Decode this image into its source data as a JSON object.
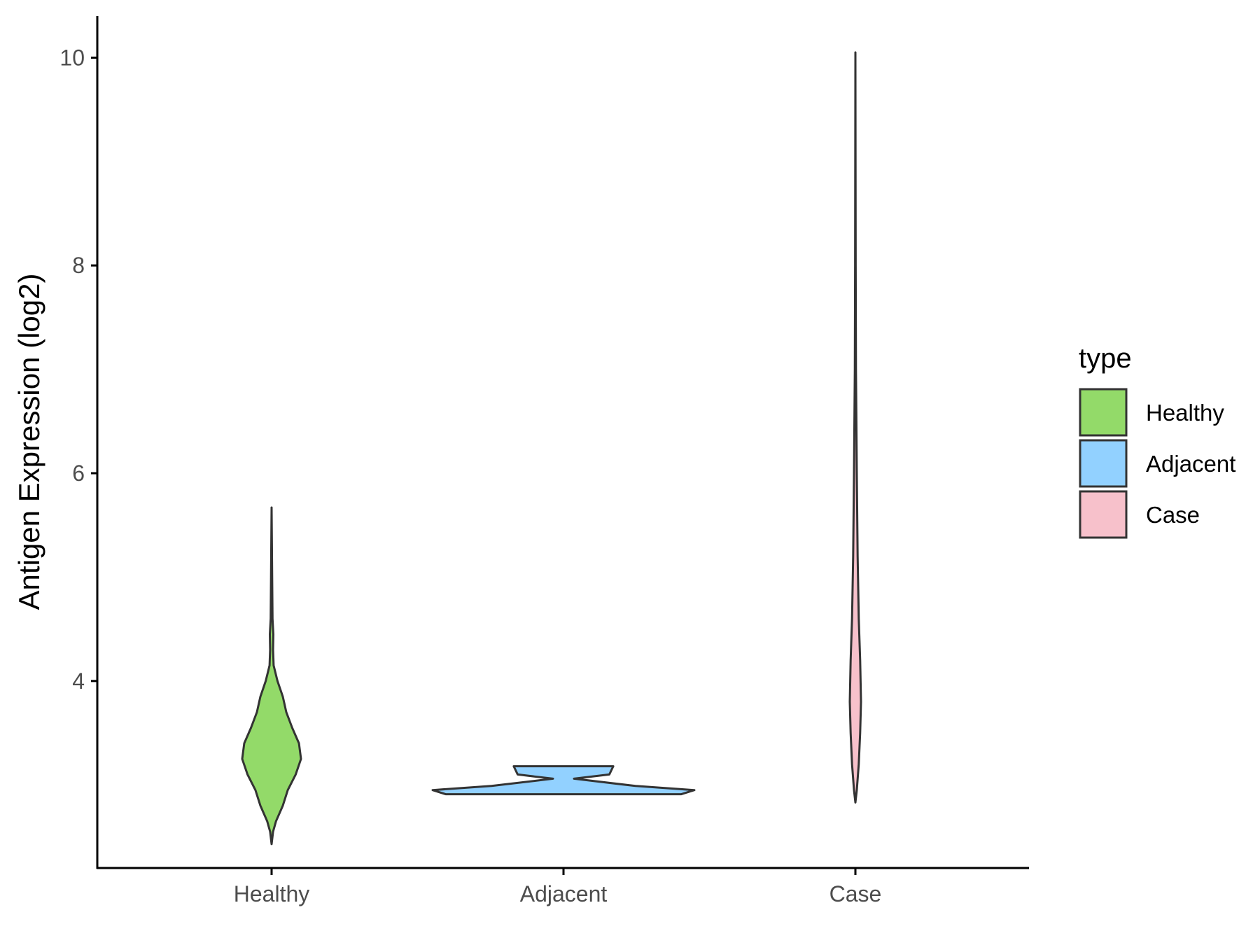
{
  "chart_data": {
    "type": "violin",
    "title": "",
    "xlabel": "",
    "ylabel": "Antigen Expression (log2)",
    "ylim": [
      2.2,
      10.4
    ],
    "yticks": [
      4,
      6,
      8,
      10
    ],
    "categories": [
      "Healthy",
      "Adjacent",
      "Case"
    ],
    "grid": false,
    "legend": {
      "title": "type",
      "position": "right",
      "entries": [
        {
          "label": "Healthy",
          "color": "#93DA69"
        },
        {
          "label": "Adjacent",
          "color": "#92D1FF"
        },
        {
          "label": "Case",
          "color": "#F7C1CB"
        }
      ]
    },
    "series": [
      {
        "category": "Healthy",
        "color": "#93DA69",
        "min": 2.43,
        "max": 5.67,
        "density": [
          [
            2.43,
            0.0
          ],
          [
            2.55,
            0.05
          ],
          [
            2.65,
            0.15
          ],
          [
            2.8,
            0.38
          ],
          [
            2.95,
            0.55
          ],
          [
            3.1,
            0.82
          ],
          [
            3.25,
            1.0
          ],
          [
            3.4,
            0.93
          ],
          [
            3.55,
            0.7
          ],
          [
            3.7,
            0.5
          ],
          [
            3.85,
            0.38
          ],
          [
            4.0,
            0.2
          ],
          [
            4.15,
            0.07
          ],
          [
            4.3,
            0.05
          ],
          [
            4.45,
            0.06
          ],
          [
            4.6,
            0.03
          ],
          [
            5.0,
            0.02
          ],
          [
            5.67,
            0.0
          ]
        ]
      },
      {
        "category": "Adjacent",
        "color": "#92D1FF",
        "min": 2.91,
        "max": 3.18,
        "density": [
          [
            2.91,
            0.9
          ],
          [
            2.95,
            1.0
          ],
          [
            2.99,
            0.55
          ],
          [
            3.06,
            0.08
          ],
          [
            3.1,
            0.35
          ],
          [
            3.18,
            0.38
          ]
        ]
      },
      {
        "category": "Case",
        "color": "#F7C1CB",
        "min": 2.83,
        "max": 10.05,
        "density": [
          [
            2.83,
            0.0
          ],
          [
            2.95,
            0.25
          ],
          [
            3.2,
            0.6
          ],
          [
            3.5,
            0.85
          ],
          [
            3.8,
            1.0
          ],
          [
            4.2,
            0.85
          ],
          [
            4.6,
            0.6
          ],
          [
            5.2,
            0.4
          ],
          [
            6.0,
            0.25
          ],
          [
            7.0,
            0.1
          ],
          [
            8.0,
            0.05
          ],
          [
            9.0,
            0.03
          ],
          [
            10.05,
            0.0
          ]
        ]
      }
    ]
  }
}
